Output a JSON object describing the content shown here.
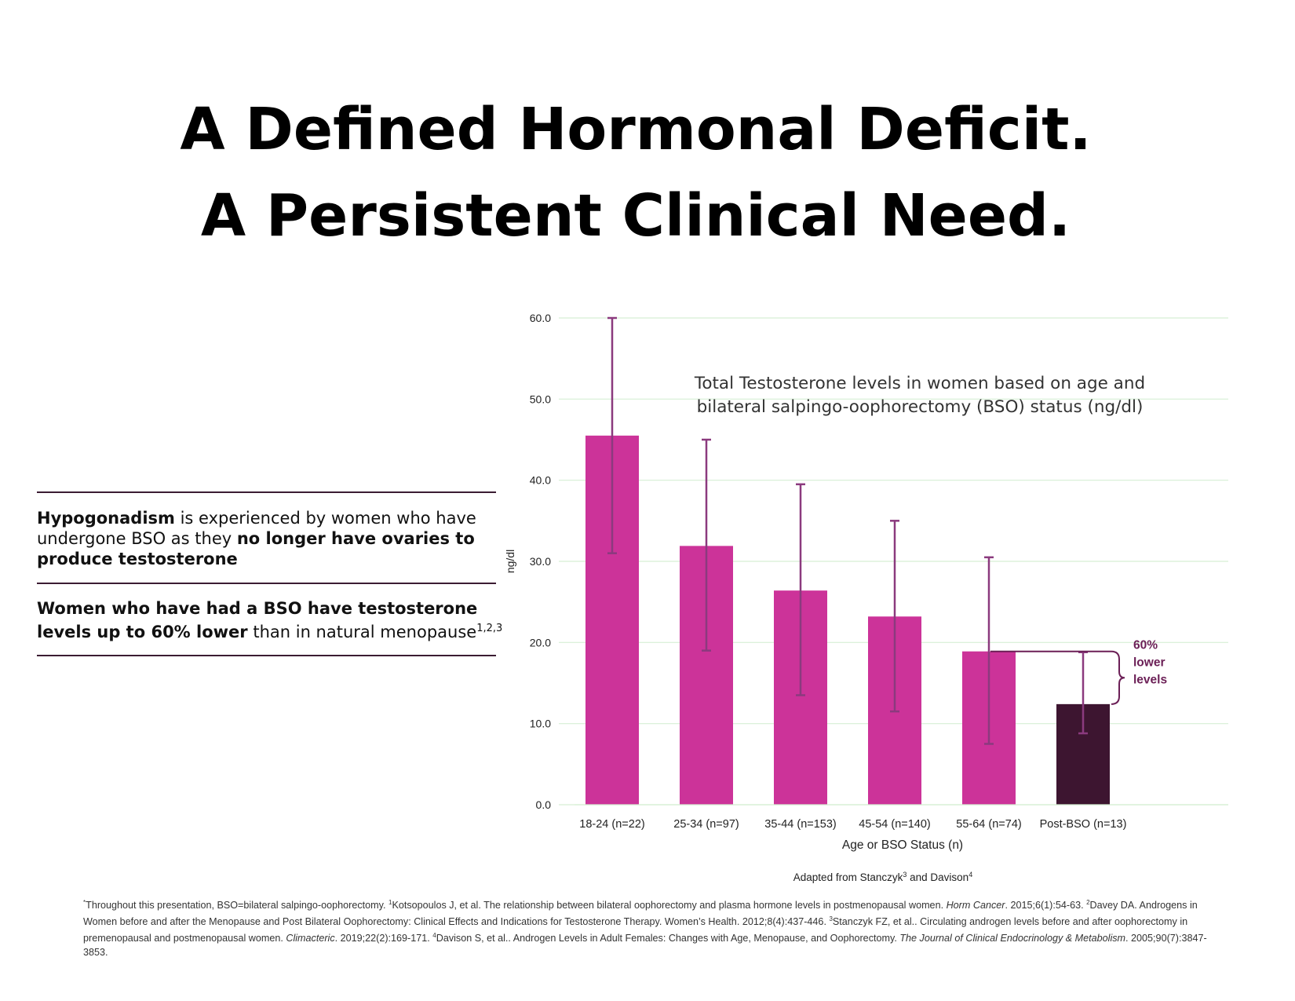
{
  "title": {
    "line1": "A Defined Hormonal Deficit.",
    "line2": "A Persistent Clinical Need."
  },
  "points": {
    "p1": {
      "b1": "Hypogonadism",
      "t1": " is experienced by women who have undergone BSO as they ",
      "b2": "no longer have ovaries to produce testosterone"
    },
    "p2": {
      "b1": "Women who have had a BSO have testosterone levels up to 60% lower",
      "t1": " than in natural menopause",
      "sup": "1,2,3"
    }
  },
  "chart_data": {
    "type": "bar",
    "title": "Total Testosterone levels in women based on age and bilateral salpingo-oophorectomy (BSO) status (ng/dl)",
    "title_lines": [
      "Total Testosterone levels in women based on age and",
      "bilateral salpingo-oophorectomy (BSO) status (ng/dl)"
    ],
    "xlabel": "Age or BSO Status (n)",
    "ylabel": "ng/dl",
    "ylim": [
      0,
      60
    ],
    "yticks": [
      "0.0",
      "10.0",
      "20.0",
      "30.0",
      "40.0",
      "50.0",
      "60.0"
    ],
    "grid": true,
    "categories": [
      "18-24 (n=22)",
      "25-34 (n=97)",
      "35-44 (n=153)",
      "45-54 (n=140)",
      "55-64 (n=74)",
      "Post-BSO (n=13)"
    ],
    "values": [
      45.5,
      31.9,
      26.4,
      23.2,
      18.9,
      12.4
    ],
    "error_low": [
      31.0,
      19.0,
      13.5,
      11.5,
      7.5,
      8.8
    ],
    "error_high": [
      60.0,
      45.0,
      39.5,
      35.0,
      30.5,
      18.8
    ],
    "colors": [
      "#cc3399",
      "#cc3399",
      "#cc3399",
      "#cc3399",
      "#cc3399",
      "#3d1530"
    ],
    "errorbar_color": "#8b3a7e",
    "annotation": {
      "lines": [
        "60%",
        "lower",
        "levels"
      ],
      "color": "#6b1f56"
    },
    "source": {
      "text1": "Adapted from Stanczyk",
      "sup1": "3",
      "text2": " and Davison",
      "sup2": "4"
    }
  },
  "footnotes": {
    "sup0": "*",
    "t0": "Throughout this presentation, BSO=bilateral salpingo-oophorectomy. ",
    "sup1": "1",
    "t1": "Kotsopoulos J, et al. The relationship between bilateral oophorectomy and plasma hormone levels in postmenopausal women. ",
    "i1": "Horm Cancer",
    "t1b": ". 2015;6(1):54-63. ",
    "sup2": "2",
    "t2": "Davey DA. Androgens in Women before and after the Menopause and Post Bilateral Oophorectomy: Clinical Effects and Indications for Testosterone Therapy. Women’s Health. 2012;8(4):437-446. ",
    "sup3": "3",
    "t3": "Stanczyk FZ, et al.. Circulating androgen levels before and after oophorectomy in premenopausal and postmenopausal women. ",
    "i3": "Climacteric",
    "t3b": ". 2019;22(2):169-171. ",
    "sup4": "4",
    "t4": "Davison S, et al.. Androgen Levels in Adult Females: Changes with Age, Menopause, and Oophorectomy. ",
    "i4": "The Journal of Clinical Endocrinology & Metabolism",
    "t4b": ". 2005;90(7):3847-3853."
  }
}
